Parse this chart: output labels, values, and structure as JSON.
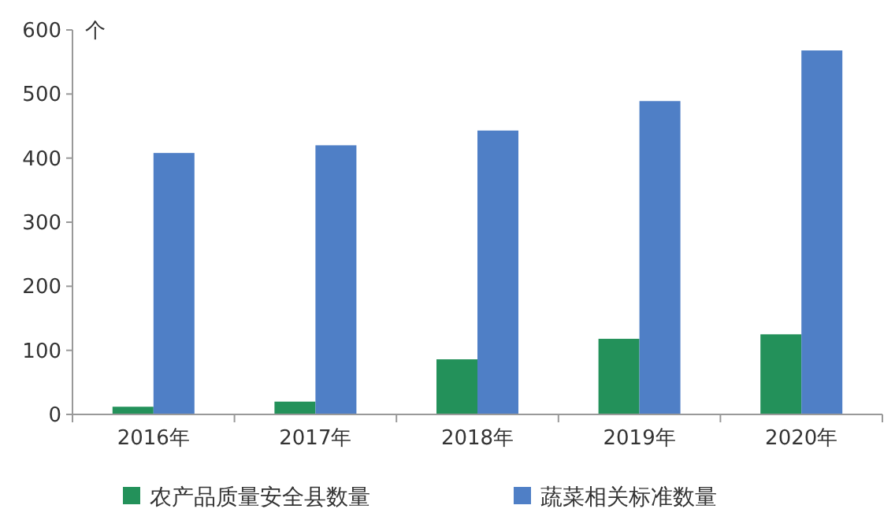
{
  "chart_data": {
    "type": "bar",
    "ylabel": "个",
    "categories": [
      "2016年",
      "2017年",
      "2018年",
      "2019年",
      "2020年"
    ],
    "series": [
      {
        "name": "农产品质量安全县数量",
        "color": "#23915a",
        "values": [
          12,
          20,
          86,
          118,
          125
        ]
      },
      {
        "name": "蔬菜相关标准数量",
        "color": "#4f7fc6",
        "values": [
          408,
          420,
          443,
          489,
          568
        ]
      }
    ],
    "ylim": [
      0,
      600
    ],
    "yticks": [
      0,
      100,
      200,
      300,
      400,
      500,
      600
    ],
    "grid": false,
    "legend": "bottom"
  }
}
